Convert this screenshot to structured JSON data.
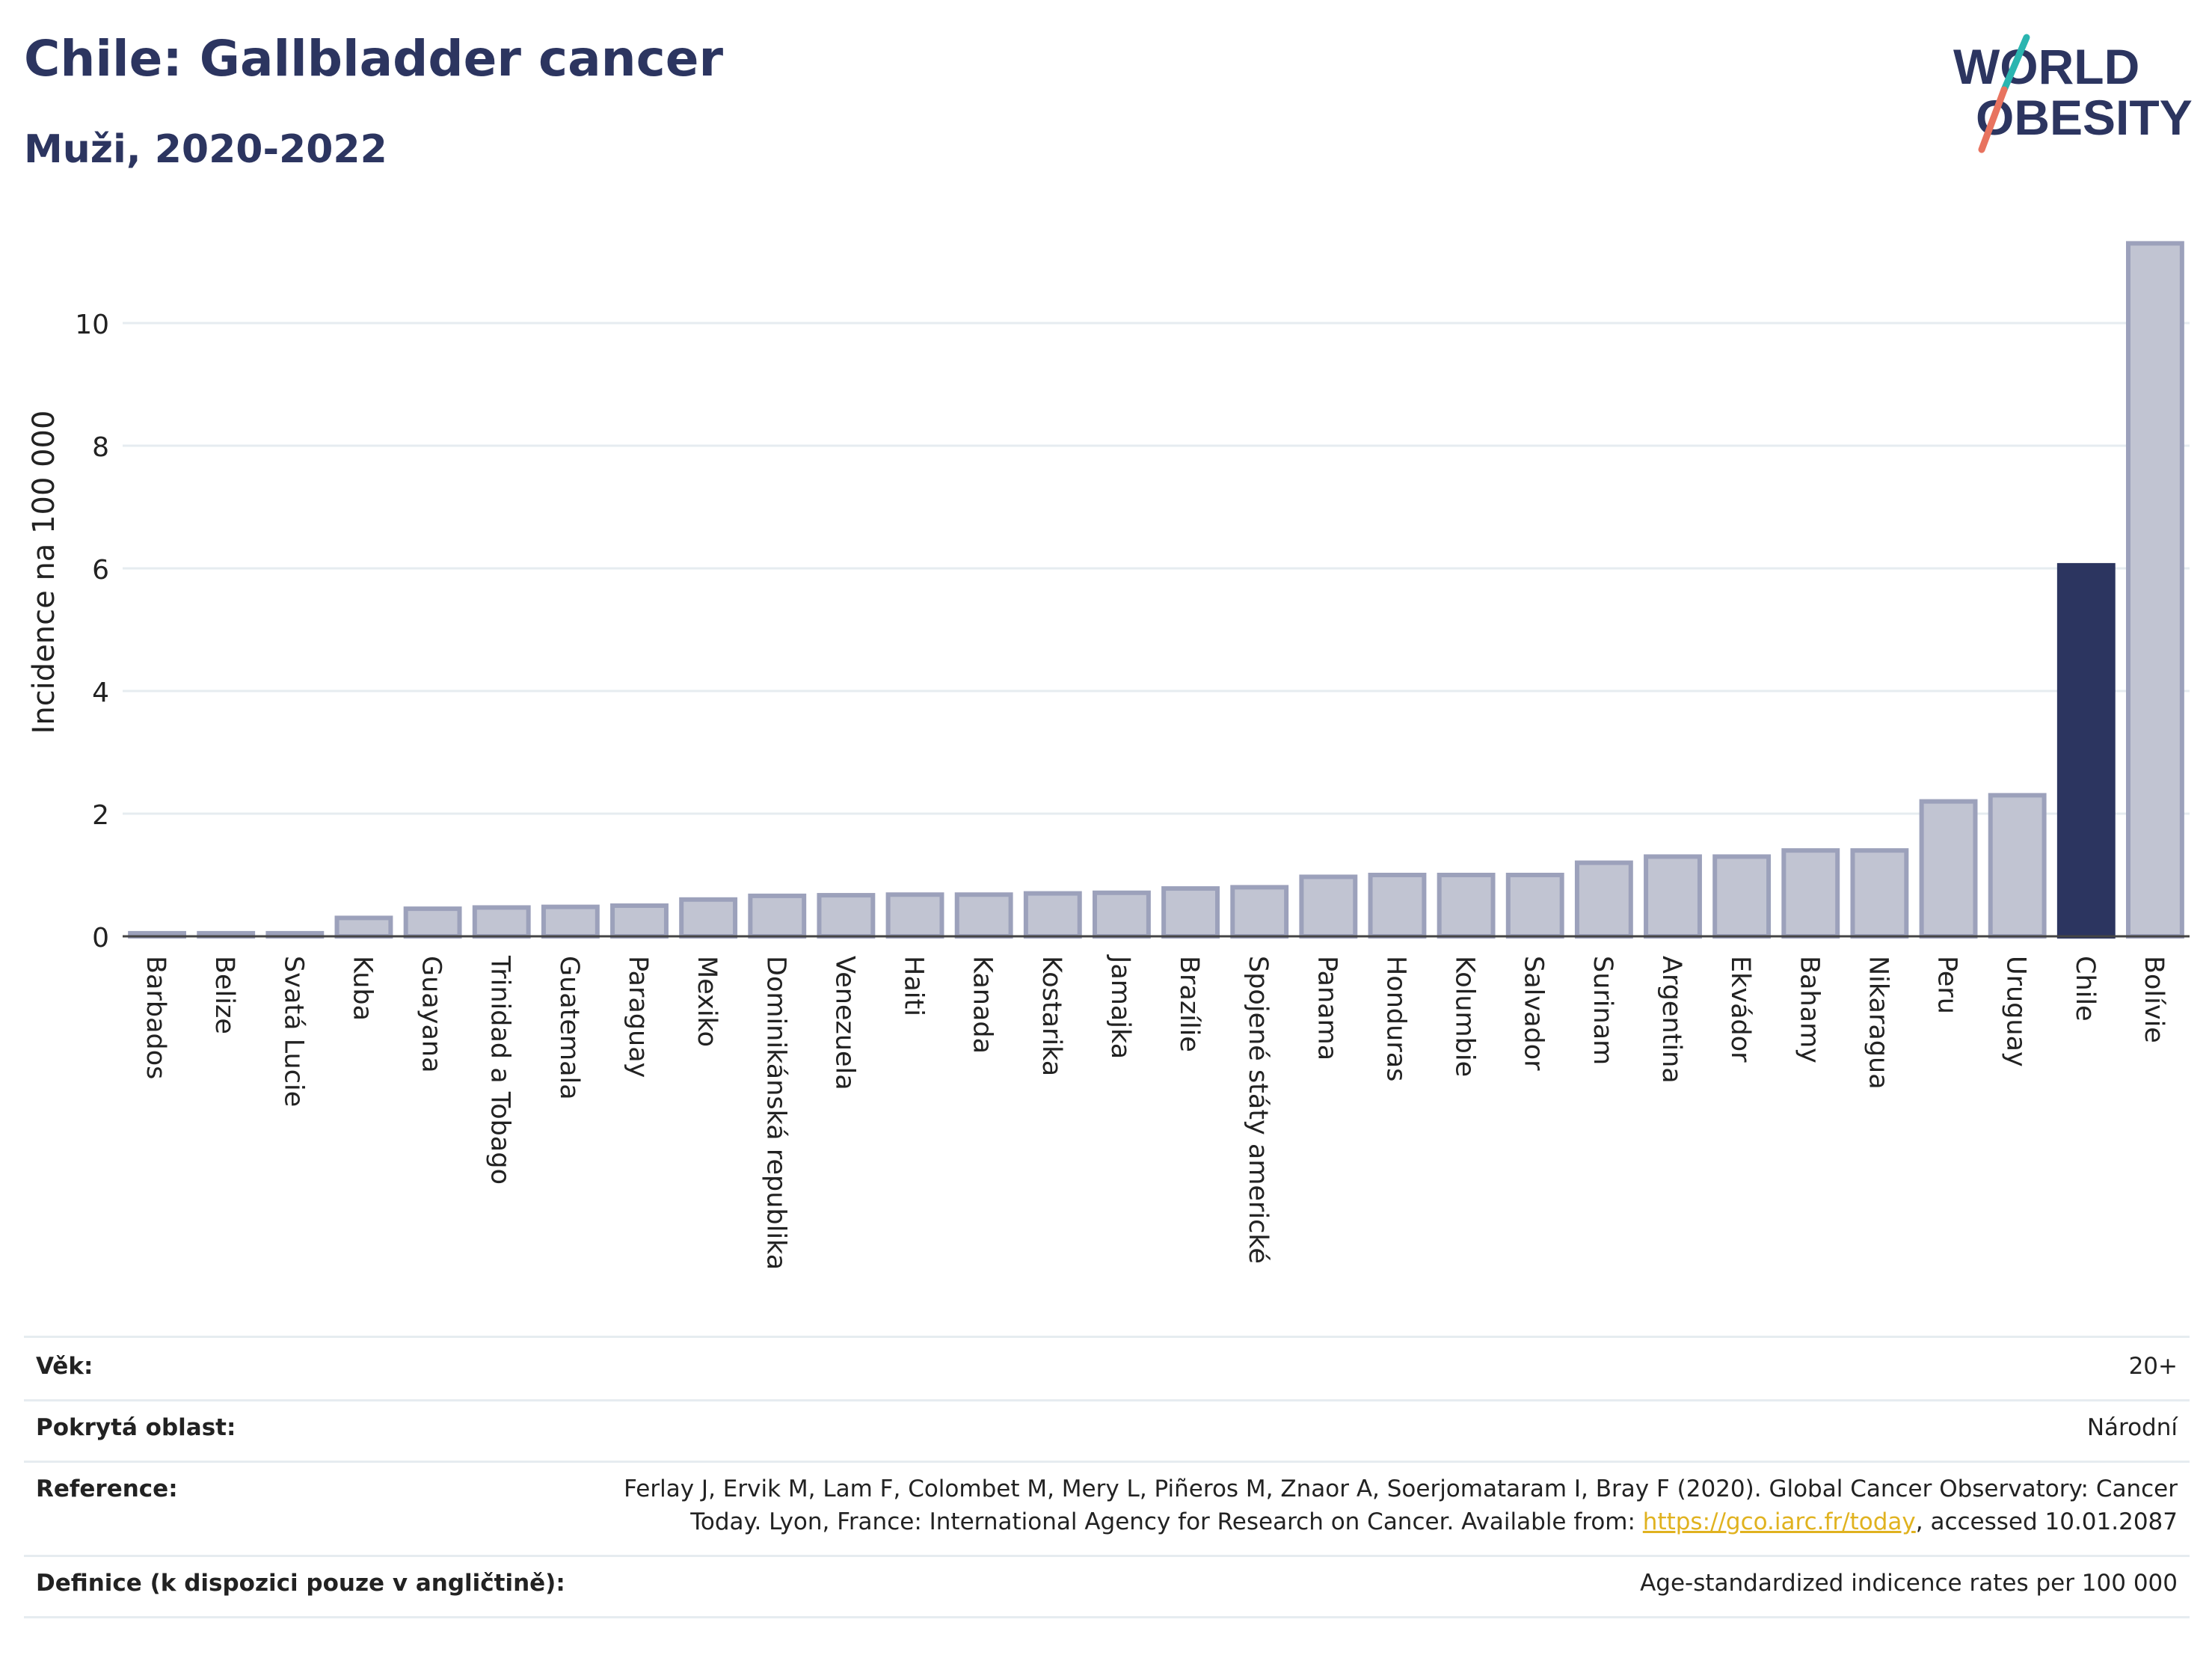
{
  "header": {
    "title": "Chile: Gallbladder cancer",
    "subtitle": "Muži, 2020-2022"
  },
  "logo": {
    "line1": "WORLD",
    "line2": "OBESITY",
    "accent_colors": [
      "#2bb5b0",
      "#e8735f"
    ]
  },
  "chart_data": {
    "type": "bar",
    "ylabel": "Incidence na 100 000",
    "xlabel": "",
    "ylim": [
      0,
      11.5
    ],
    "yticks": [
      0,
      2,
      4,
      6,
      8,
      10
    ],
    "grid": true,
    "highlight": "Chile",
    "colors": {
      "bar": "#c1c4d2",
      "bar_stroke": "#9ca1bb",
      "highlight": "#2c3560"
    },
    "categories": [
      "Barbados",
      "Belize",
      "Svatá Lucie",
      "Kuba",
      "Guayana",
      "Trinidad a Tobago",
      "Guatemala",
      "Paraguay",
      "Mexiko",
      "Dominikánská republika",
      "Venezuela",
      "Haiti",
      "Kanada",
      "Kostarika",
      "Jamajka",
      "Brazílie",
      "Spojené státy americké",
      "Panama",
      "Honduras",
      "Kolumbie",
      "Salvador",
      "Surinam",
      "Argentina",
      "Ekvádor",
      "Bahamy",
      "Nikaragua",
      "Peru",
      "Uruguay",
      "Chile",
      "Bolívie"
    ],
    "values": [
      0.05,
      0.05,
      0.05,
      0.3,
      0.45,
      0.47,
      0.48,
      0.5,
      0.6,
      0.66,
      0.67,
      0.68,
      0.68,
      0.7,
      0.71,
      0.78,
      0.8,
      0.97,
      1.0,
      1.0,
      1.0,
      1.2,
      1.3,
      1.3,
      1.4,
      1.4,
      2.2,
      2.3,
      6.05,
      11.3
    ]
  },
  "meta": {
    "rows": [
      {
        "label": "Věk:",
        "value": "20+"
      },
      {
        "label": "Pokrytá oblast:",
        "value": "Národní"
      },
      {
        "label": "Reference:",
        "value": "Ferlay J, Ervik M, Lam F, Colombet M, Mery L, Piñeros M, Znaor A, Soerjomataram I, Bray F (2020). Global Cancer Observatory: Cancer Today. Lyon, France: International Agency for Research on Cancer. Available from: ",
        "link": "https://gco.iarc.fr/today",
        "suffix": ", accessed 10.01.2087"
      },
      {
        "label": "Definice (k dispozici pouze v angličtině):",
        "value": "Age-standardized indicence rates per 100 000"
      }
    ]
  }
}
